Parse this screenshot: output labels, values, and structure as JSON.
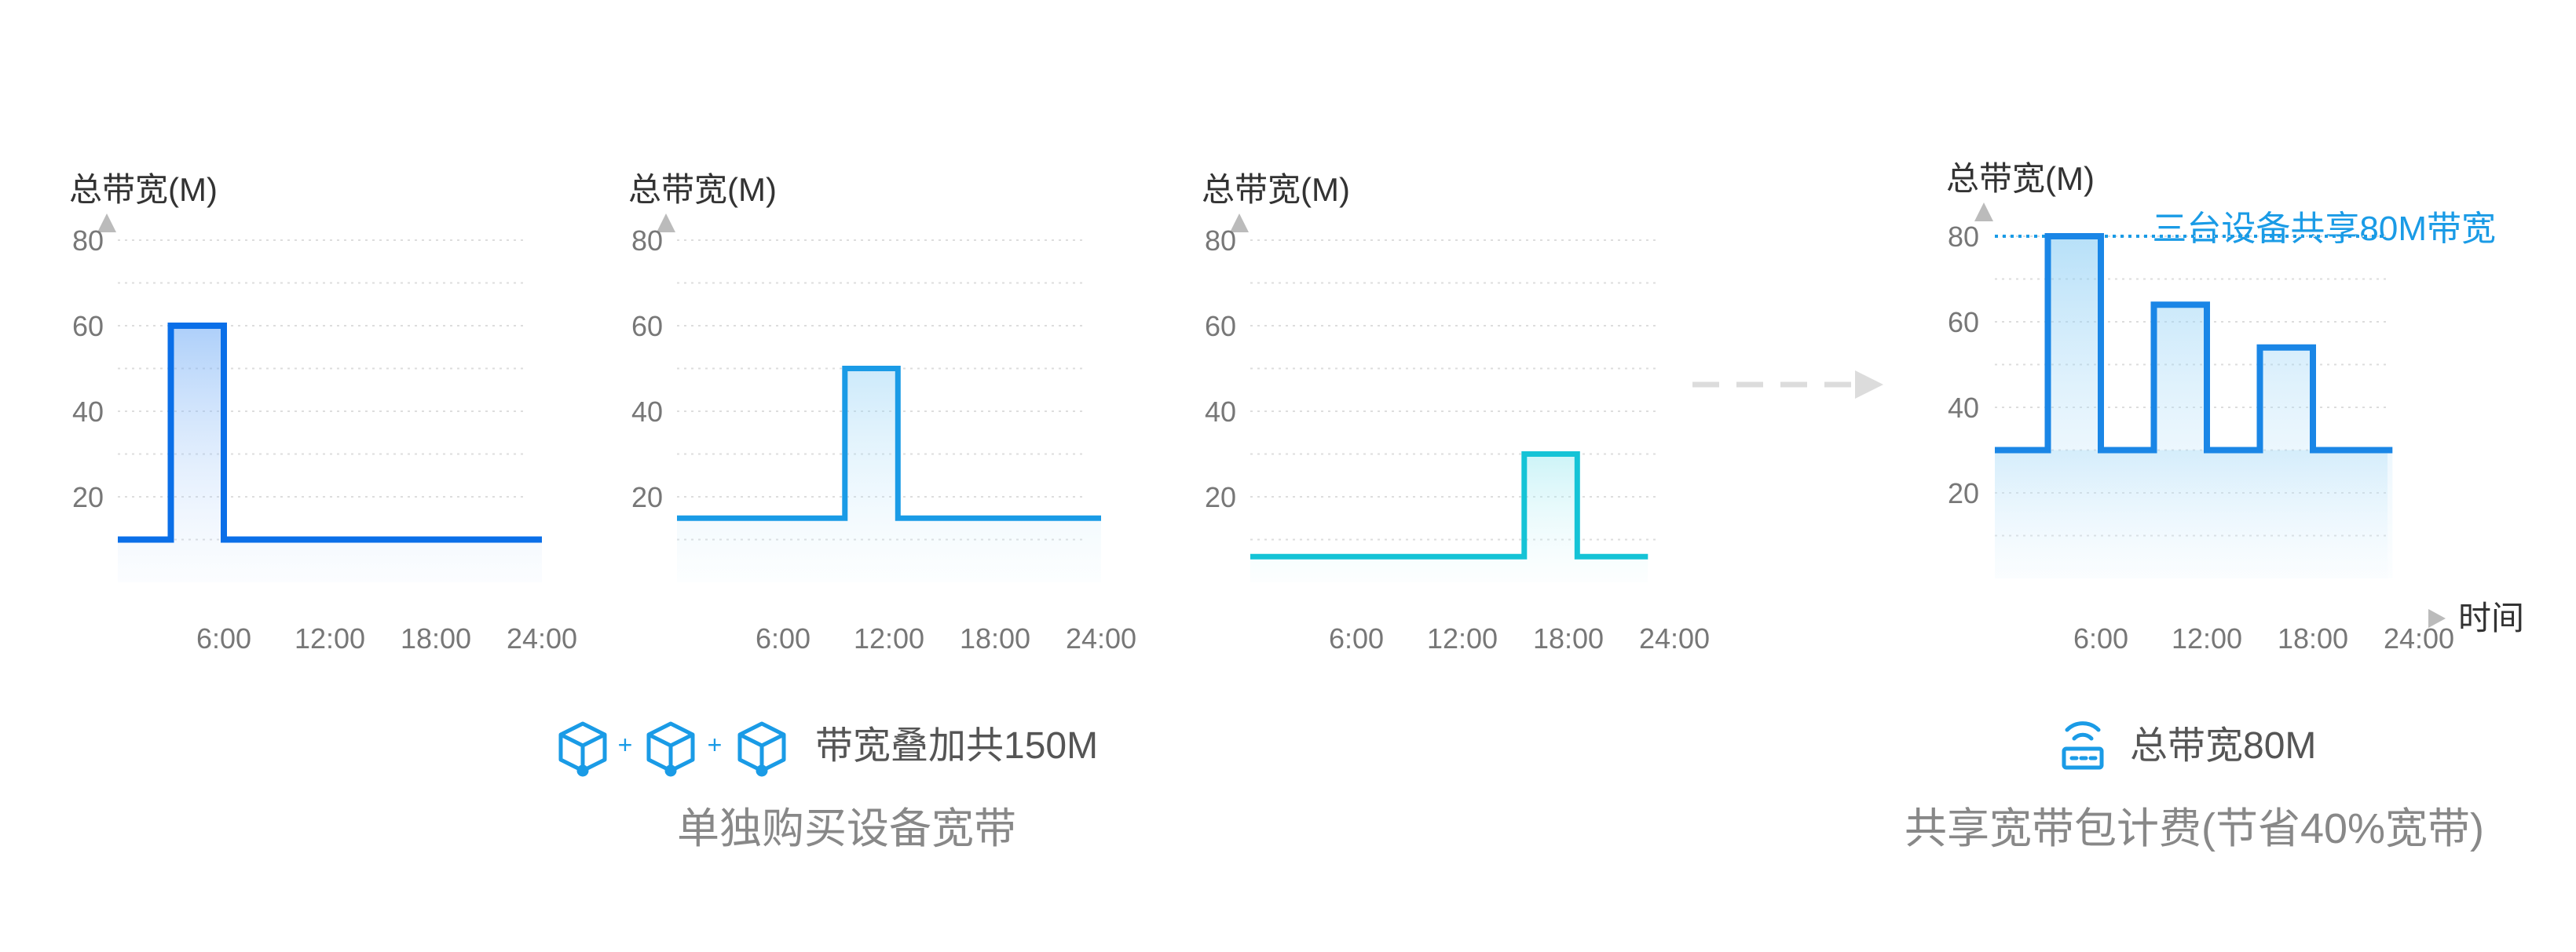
{
  "chart_data": [
    {
      "type": "line",
      "ylabel": "总带宽(M)",
      "y_ticks": [
        "20",
        "40",
        "60",
        "80"
      ],
      "x_ticks": [
        "6:00",
        "12:00",
        "18:00",
        "24:00"
      ],
      "ylim": [
        0,
        90
      ],
      "x": [
        0,
        3,
        3,
        6,
        6,
        24
      ],
      "values": [
        10,
        10,
        60,
        60,
        10,
        10
      ],
      "color": "#0a6fe8",
      "grid": true
    },
    {
      "type": "line",
      "ylabel": "总带宽(M)",
      "y_ticks": [
        "20",
        "40",
        "60",
        "80"
      ],
      "x_ticks": [
        "6:00",
        "12:00",
        "18:00",
        "24:00"
      ],
      "ylim": [
        0,
        90
      ],
      "x": [
        0,
        9.5,
        9.5,
        12.5,
        12.5,
        24
      ],
      "values": [
        15,
        15,
        50,
        50,
        15,
        15
      ],
      "color": "#1a9be6",
      "grid": true
    },
    {
      "type": "line",
      "ylabel": "总带宽(M)",
      "y_ticks": [
        "20",
        "40",
        "60",
        "80"
      ],
      "x_ticks": [
        "6:00",
        "12:00",
        "18:00",
        "24:00"
      ],
      "ylim": [
        0,
        90
      ],
      "x": [
        0,
        15.5,
        15.5,
        18.5,
        18.5,
        22.5
      ],
      "values": [
        6,
        6,
        30,
        30,
        6,
        6
      ],
      "color": "#15c3d6",
      "grid": true
    },
    {
      "type": "line",
      "ylabel": "总带宽(M)",
      "xlabel": "时间",
      "y_ticks": [
        "20",
        "40",
        "60",
        "80"
      ],
      "x_ticks": [
        "6:00",
        "12:00",
        "18:00",
        "24:00"
      ],
      "ylim": [
        0,
        90
      ],
      "x": [
        0,
        3,
        3,
        6,
        6,
        9,
        9,
        12,
        12,
        15,
        15,
        18,
        18,
        22.5
      ],
      "values": [
        30,
        30,
        80,
        80,
        30,
        30,
        64,
        64,
        30,
        30,
        54,
        54,
        30,
        30
      ],
      "color": "#1a86e6",
      "grid": true,
      "reference_line": {
        "value": 80,
        "label": "三台设备共享80M带宽",
        "color": "#1a9be6"
      }
    }
  ],
  "captions": {
    "left_summary": "带宽叠加共150M",
    "left_title": "单独购买设备宽带",
    "right_summary": "总带宽80M",
    "right_title": "共享宽带包计费(节省40%宽带)",
    "plus": "+"
  },
  "icons": {
    "device": "cube-icon",
    "router": "router-icon",
    "arrow": "dashed-arrow-icon"
  },
  "colors": {
    "accent": "#1a9be6",
    "grid": "#dddddd",
    "arrow": "#dcdcdc"
  }
}
